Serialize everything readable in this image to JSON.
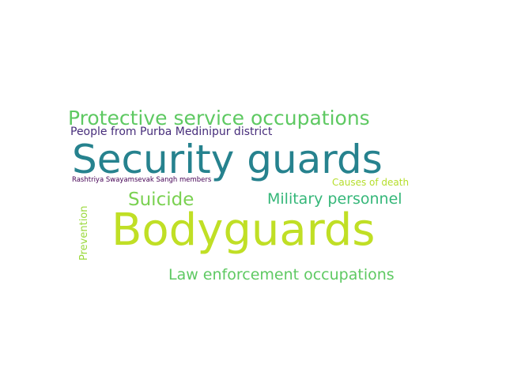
{
  "words": [
    {
      "id": "w-protective",
      "text": "Protective service occupations",
      "color": "#5ec962"
    },
    {
      "id": "w-purba",
      "text": "People from Purba Medinipur district",
      "color": "#472d7b"
    },
    {
      "id": "w-security",
      "text": "Security guards",
      "color": "#26828e"
    },
    {
      "id": "w-rss",
      "text": "Rashtriya Swayamsevak Sangh members",
      "color": "#440154"
    },
    {
      "id": "w-causes",
      "text": "Causes of death",
      "color": "#b5de2b"
    },
    {
      "id": "w-suicide",
      "text": "Suicide",
      "color": "#7ad151"
    },
    {
      "id": "w-military",
      "text": "Military personnel",
      "color": "#35b779"
    },
    {
      "id": "w-bodyguards",
      "text": "Bodyguards",
      "color": "#c0df25"
    },
    {
      "id": "w-lawenf",
      "text": "Law enforcement occupations",
      "color": "#5ec962"
    },
    {
      "id": "w-prevention",
      "text": "Prevention",
      "color": "#9bd93c"
    }
  ]
}
